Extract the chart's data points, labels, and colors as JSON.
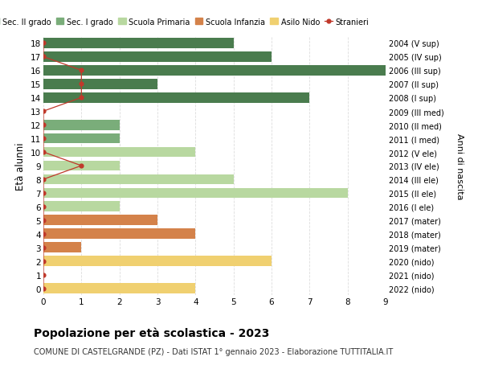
{
  "ages": [
    18,
    17,
    16,
    15,
    14,
    13,
    12,
    11,
    10,
    9,
    8,
    7,
    6,
    5,
    4,
    3,
    2,
    1,
    0
  ],
  "right_labels": [
    "2004 (V sup)",
    "2005 (IV sup)",
    "2006 (III sup)",
    "2007 (II sup)",
    "2008 (I sup)",
    "2009 (III med)",
    "2010 (II med)",
    "2011 (I med)",
    "2012 (V ele)",
    "2013 (IV ele)",
    "2014 (III ele)",
    "2015 (II ele)",
    "2016 (I ele)",
    "2017 (mater)",
    "2018 (mater)",
    "2019 (mater)",
    "2020 (nido)",
    "2021 (nido)",
    "2022 (nido)"
  ],
  "bar_values": [
    5,
    6,
    9,
    3,
    7,
    0,
    2,
    2,
    4,
    2,
    5,
    8,
    2,
    3,
    4,
    1,
    6,
    0,
    4
  ],
  "bar_colors": [
    "#4a7c4e",
    "#4a7c4e",
    "#4a7c4e",
    "#4a7c4e",
    "#4a7c4e",
    "#7aad7a",
    "#7aad7a",
    "#7aad7a",
    "#b8d8a0",
    "#b8d8a0",
    "#b8d8a0",
    "#b8d8a0",
    "#b8d8a0",
    "#d4824a",
    "#d4824a",
    "#d4824a",
    "#f0d070",
    "#f0d070",
    "#f0d070"
  ],
  "stranieri_x": [
    0,
    0,
    1,
    1,
    1,
    0,
    0,
    0,
    0,
    1,
    0,
    0,
    0,
    0,
    0,
    0,
    0,
    0,
    0
  ],
  "legend_labels": [
    "Sec. II grado",
    "Sec. I grado",
    "Scuola Primaria",
    "Scuola Infanzia",
    "Asilo Nido",
    "Stranieri"
  ],
  "legend_colors": [
    "#4a7c4e",
    "#7aad7a",
    "#b8d8a0",
    "#d4824a",
    "#f0d070",
    "#c0392b"
  ],
  "title": "Popolazione per età scolastica - 2023",
  "subtitle": "COMUNE DI CASTELGRANDE (PZ) - Dati ISTAT 1° gennaio 2023 - Elaborazione TUTTITALIA.IT",
  "ylabel": "Età alunni",
  "right_ylabel": "Anni di nascita",
  "xlim": [
    0,
    9
  ],
  "background_color": "#ffffff",
  "grid_color": "#dddddd",
  "stranieri_color": "#c0392b",
  "bar_height": 0.75
}
